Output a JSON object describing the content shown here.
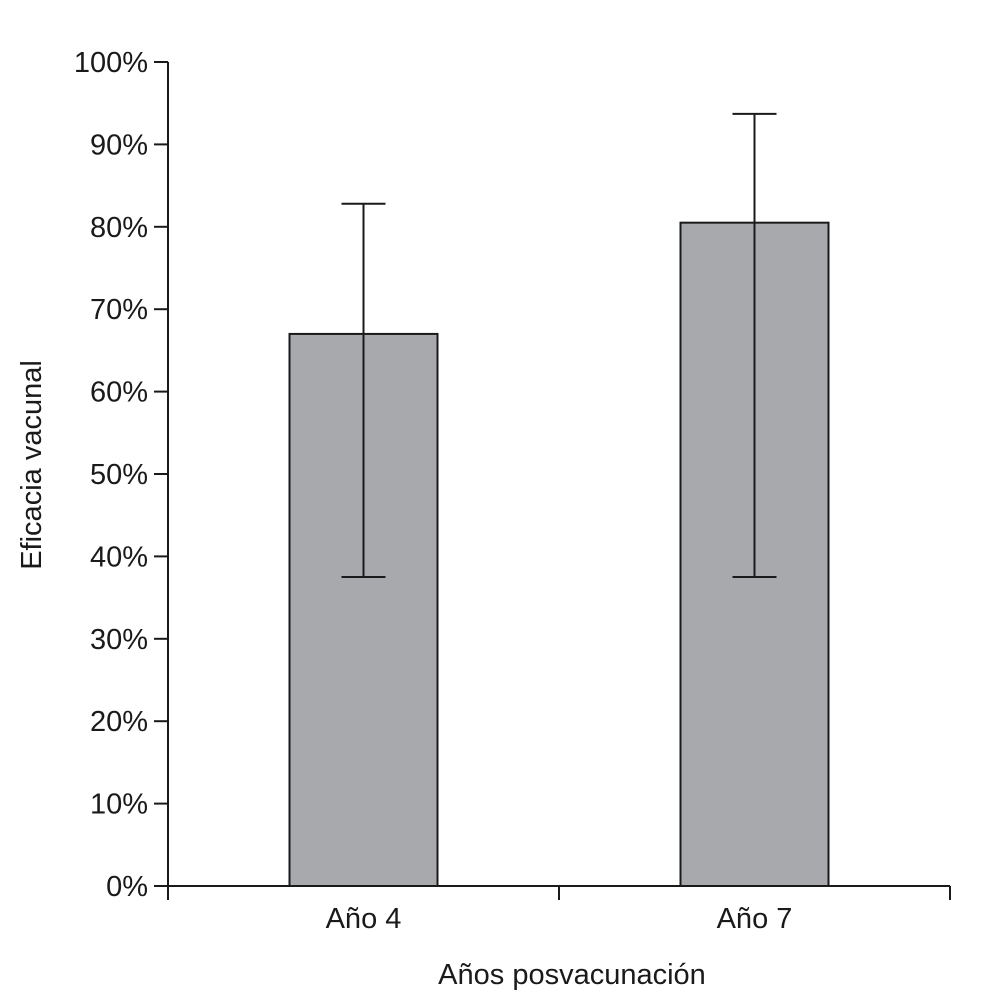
{
  "chart_data": {
    "type": "bar",
    "categories": [
      "Año 4",
      "Año 7"
    ],
    "values": [
      67,
      80.5
    ],
    "error_low": [
      37.5,
      37.5
    ],
    "error_high": [
      82.8,
      93.7
    ],
    "title": "",
    "xlabel": "Años posvacunación",
    "ylabel": "Eficacia vacunal",
    "ylim": [
      0,
      100
    ],
    "ytick_values": [
      0,
      10,
      20,
      30,
      40,
      50,
      60,
      70,
      80,
      90,
      100
    ],
    "ytick_labels": [
      "0%",
      "10%",
      "20%",
      "30%",
      "40%",
      "50%",
      "60%",
      "70%",
      "80%",
      "90%",
      "100%"
    ],
    "grid": false,
    "legend": "none",
    "colors": {
      "bar_fill": "#a8a9ad",
      "bar_stroke": "#1a1a1a",
      "axis": "#1a1a1a",
      "error_bar": "#1a1a1a"
    }
  }
}
